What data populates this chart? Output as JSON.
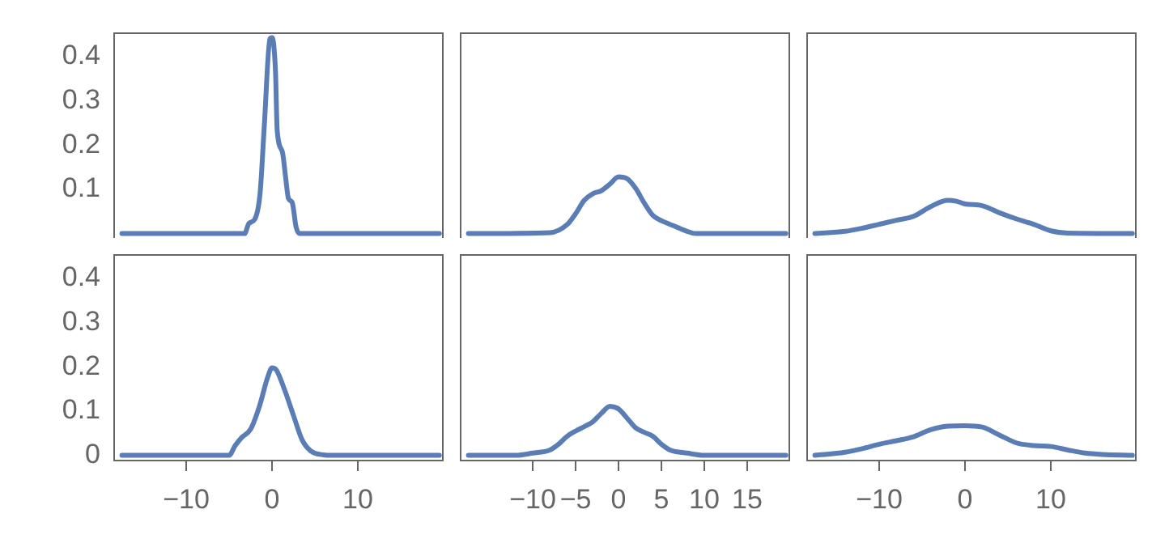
{
  "chart_data": [
    {
      "type": "line",
      "color": "#5a7db6",
      "xlim": [
        -18.5,
        20
      ],
      "ylim": [
        -0.01,
        0.455
      ],
      "yticks": [
        0.1,
        0.2,
        0.3,
        0.4
      ],
      "tick_labels": "y",
      "marker": "none",
      "x": [
        -17.5,
        -3.2,
        -2.7,
        -2,
        -1.4,
        -0.9,
        -0.25,
        0,
        0.4,
        0.6,
        1.2,
        1.6,
        1.9,
        2.35,
        2.8,
        3.2,
        19.5
      ],
      "values": [
        0,
        0,
        0.023,
        0.033,
        0.09,
        0.245,
        0.44,
        0.443,
        0.367,
        0.233,
        0.185,
        0.124,
        0.08,
        0.07,
        0.015,
        0,
        0
      ]
    },
    {
      "type": "line",
      "color": "#5a7db6",
      "xlim": [
        -18.5,
        20
      ],
      "ylim": [
        -0.01,
        0.455
      ],
      "tick_labels": false,
      "marker": "none",
      "x": [
        -17.5,
        -8,
        -6,
        -5,
        -4,
        -3,
        -2,
        -1,
        0,
        1,
        2,
        3,
        4,
        5,
        6.5,
        8,
        9,
        19.5
      ],
      "values": [
        0,
        0.002,
        0.02,
        0.045,
        0.075,
        0.09,
        0.097,
        0.112,
        0.128,
        0.124,
        0.102,
        0.069,
        0.041,
        0.029,
        0.017,
        0.005,
        0,
        0
      ]
    },
    {
      "type": "line",
      "color": "#5a7db6",
      "xlim": [
        -18.5,
        20
      ],
      "ylim": [
        -0.01,
        0.455
      ],
      "tick_labels": false,
      "marker": "none",
      "x": [
        -17.5,
        -14,
        -12,
        -10,
        -8,
        -6,
        -4,
        -2,
        -1,
        0,
        2,
        4,
        6,
        8,
        10,
        12,
        19.5
      ],
      "values": [
        0,
        0.005,
        0.012,
        0.021,
        0.03,
        0.039,
        0.061,
        0.075,
        0.073,
        0.067,
        0.063,
        0.047,
        0.033,
        0.021,
        0.006,
        0.001,
        0
      ]
    },
    {
      "type": "line",
      "color": "#5a7db6",
      "xlim": [
        -18.5,
        20
      ],
      "ylim": [
        -0.01,
        0.455
      ],
      "yticks": [
        0,
        0.1,
        0.2,
        0.3,
        0.4
      ],
      "xticks": [
        -10,
        0,
        10
      ],
      "marker": "none",
      "x": [
        -17.5,
        -5,
        -4.3,
        -3.5,
        -2.5,
        -1.5,
        -0.5,
        0,
        0.5,
        1.5,
        2.5,
        3.5,
        4.5,
        6,
        7,
        19.5
      ],
      "values": [
        0,
        0,
        0.022,
        0.041,
        0.059,
        0.109,
        0.177,
        0.198,
        0.193,
        0.146,
        0.09,
        0.035,
        0.01,
        0.001,
        0,
        0
      ]
    },
    {
      "type": "line",
      "color": "#5a7db6",
      "xlim": [
        -18.5,
        20
      ],
      "ylim": [
        -0.01,
        0.455
      ],
      "xticks": [
        -10,
        -5,
        0,
        5,
        10,
        15
      ],
      "tick_labels": "x",
      "marker": "none",
      "x": [
        -17.5,
        -12,
        -10,
        -8,
        -7,
        -6,
        -5,
        -4,
        -3,
        -2,
        -1,
        0,
        1,
        2,
        3,
        4,
        5,
        6,
        8,
        10,
        19.5
      ],
      "values": [
        0,
        0,
        0.005,
        0.012,
        0.025,
        0.043,
        0.055,
        0.065,
        0.076,
        0.095,
        0.111,
        0.105,
        0.084,
        0.062,
        0.052,
        0.043,
        0.025,
        0.012,
        0.005,
        0,
        0
      ]
    },
    {
      "type": "line",
      "color": "#5a7db6",
      "xlim": [
        -18.5,
        20
      ],
      "ylim": [
        -0.01,
        0.455
      ],
      "xticks": [
        -10,
        0,
        10
      ],
      "tick_labels": "x",
      "marker": "none",
      "x": [
        -17.5,
        -14,
        -12,
        -10,
        -8,
        -6,
        -4,
        -2,
        0,
        2,
        4,
        6,
        8,
        10,
        12,
        14,
        16,
        19.5
      ],
      "values": [
        0,
        0.007,
        0.015,
        0.025,
        0.033,
        0.042,
        0.058,
        0.066,
        0.067,
        0.064,
        0.046,
        0.028,
        0.022,
        0.02,
        0.012,
        0.005,
        0.002,
        0
      ]
    }
  ]
}
